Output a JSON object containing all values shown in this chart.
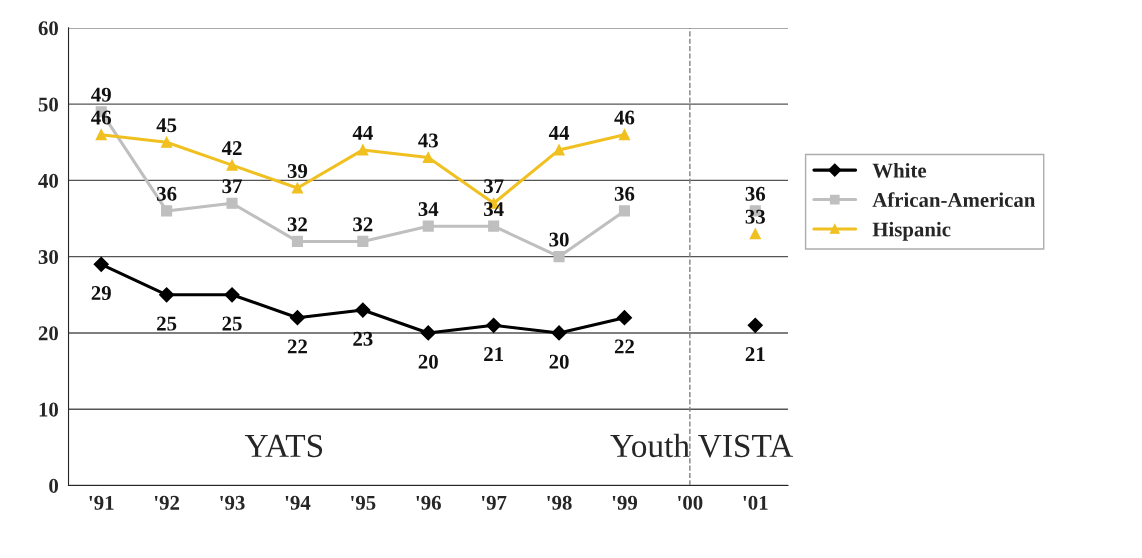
{
  "chart_data": {
    "type": "line",
    "categories": [
      "'91",
      "'92",
      "'93",
      "'94",
      "'95",
      "'96",
      "'97",
      "'98",
      "'99",
      "'00",
      "'01"
    ],
    "series": [
      {
        "name": "White",
        "color": "#000000",
        "marker": "diamond",
        "values": [
          29,
          25,
          25,
          22,
          23,
          20,
          21,
          20,
          22,
          null,
          21
        ]
      },
      {
        "name": "African-American",
        "color": "#bfbfbf",
        "marker": "square",
        "values": [
          49,
          36,
          37,
          32,
          32,
          34,
          34,
          30,
          36,
          null,
          36
        ]
      },
      {
        "name": "Hispanic",
        "color": "#f0c020",
        "marker": "triangle",
        "values": [
          46,
          45,
          42,
          39,
          44,
          43,
          37,
          44,
          46,
          null,
          33
        ]
      }
    ],
    "ylim": [
      0,
      60
    ],
    "yticks": [
      0,
      10,
      20,
      30,
      40,
      50,
      60
    ],
    "grid": "y",
    "legend": "right",
    "line_style": "solid",
    "data_labels": true,
    "ref_lines": [
      {
        "axis": "x",
        "value": "'00",
        "color": "#808080",
        "line_style": "dashed"
      }
    ],
    "annotations": [
      "YATS",
      "Youth VISTA"
    ]
  }
}
